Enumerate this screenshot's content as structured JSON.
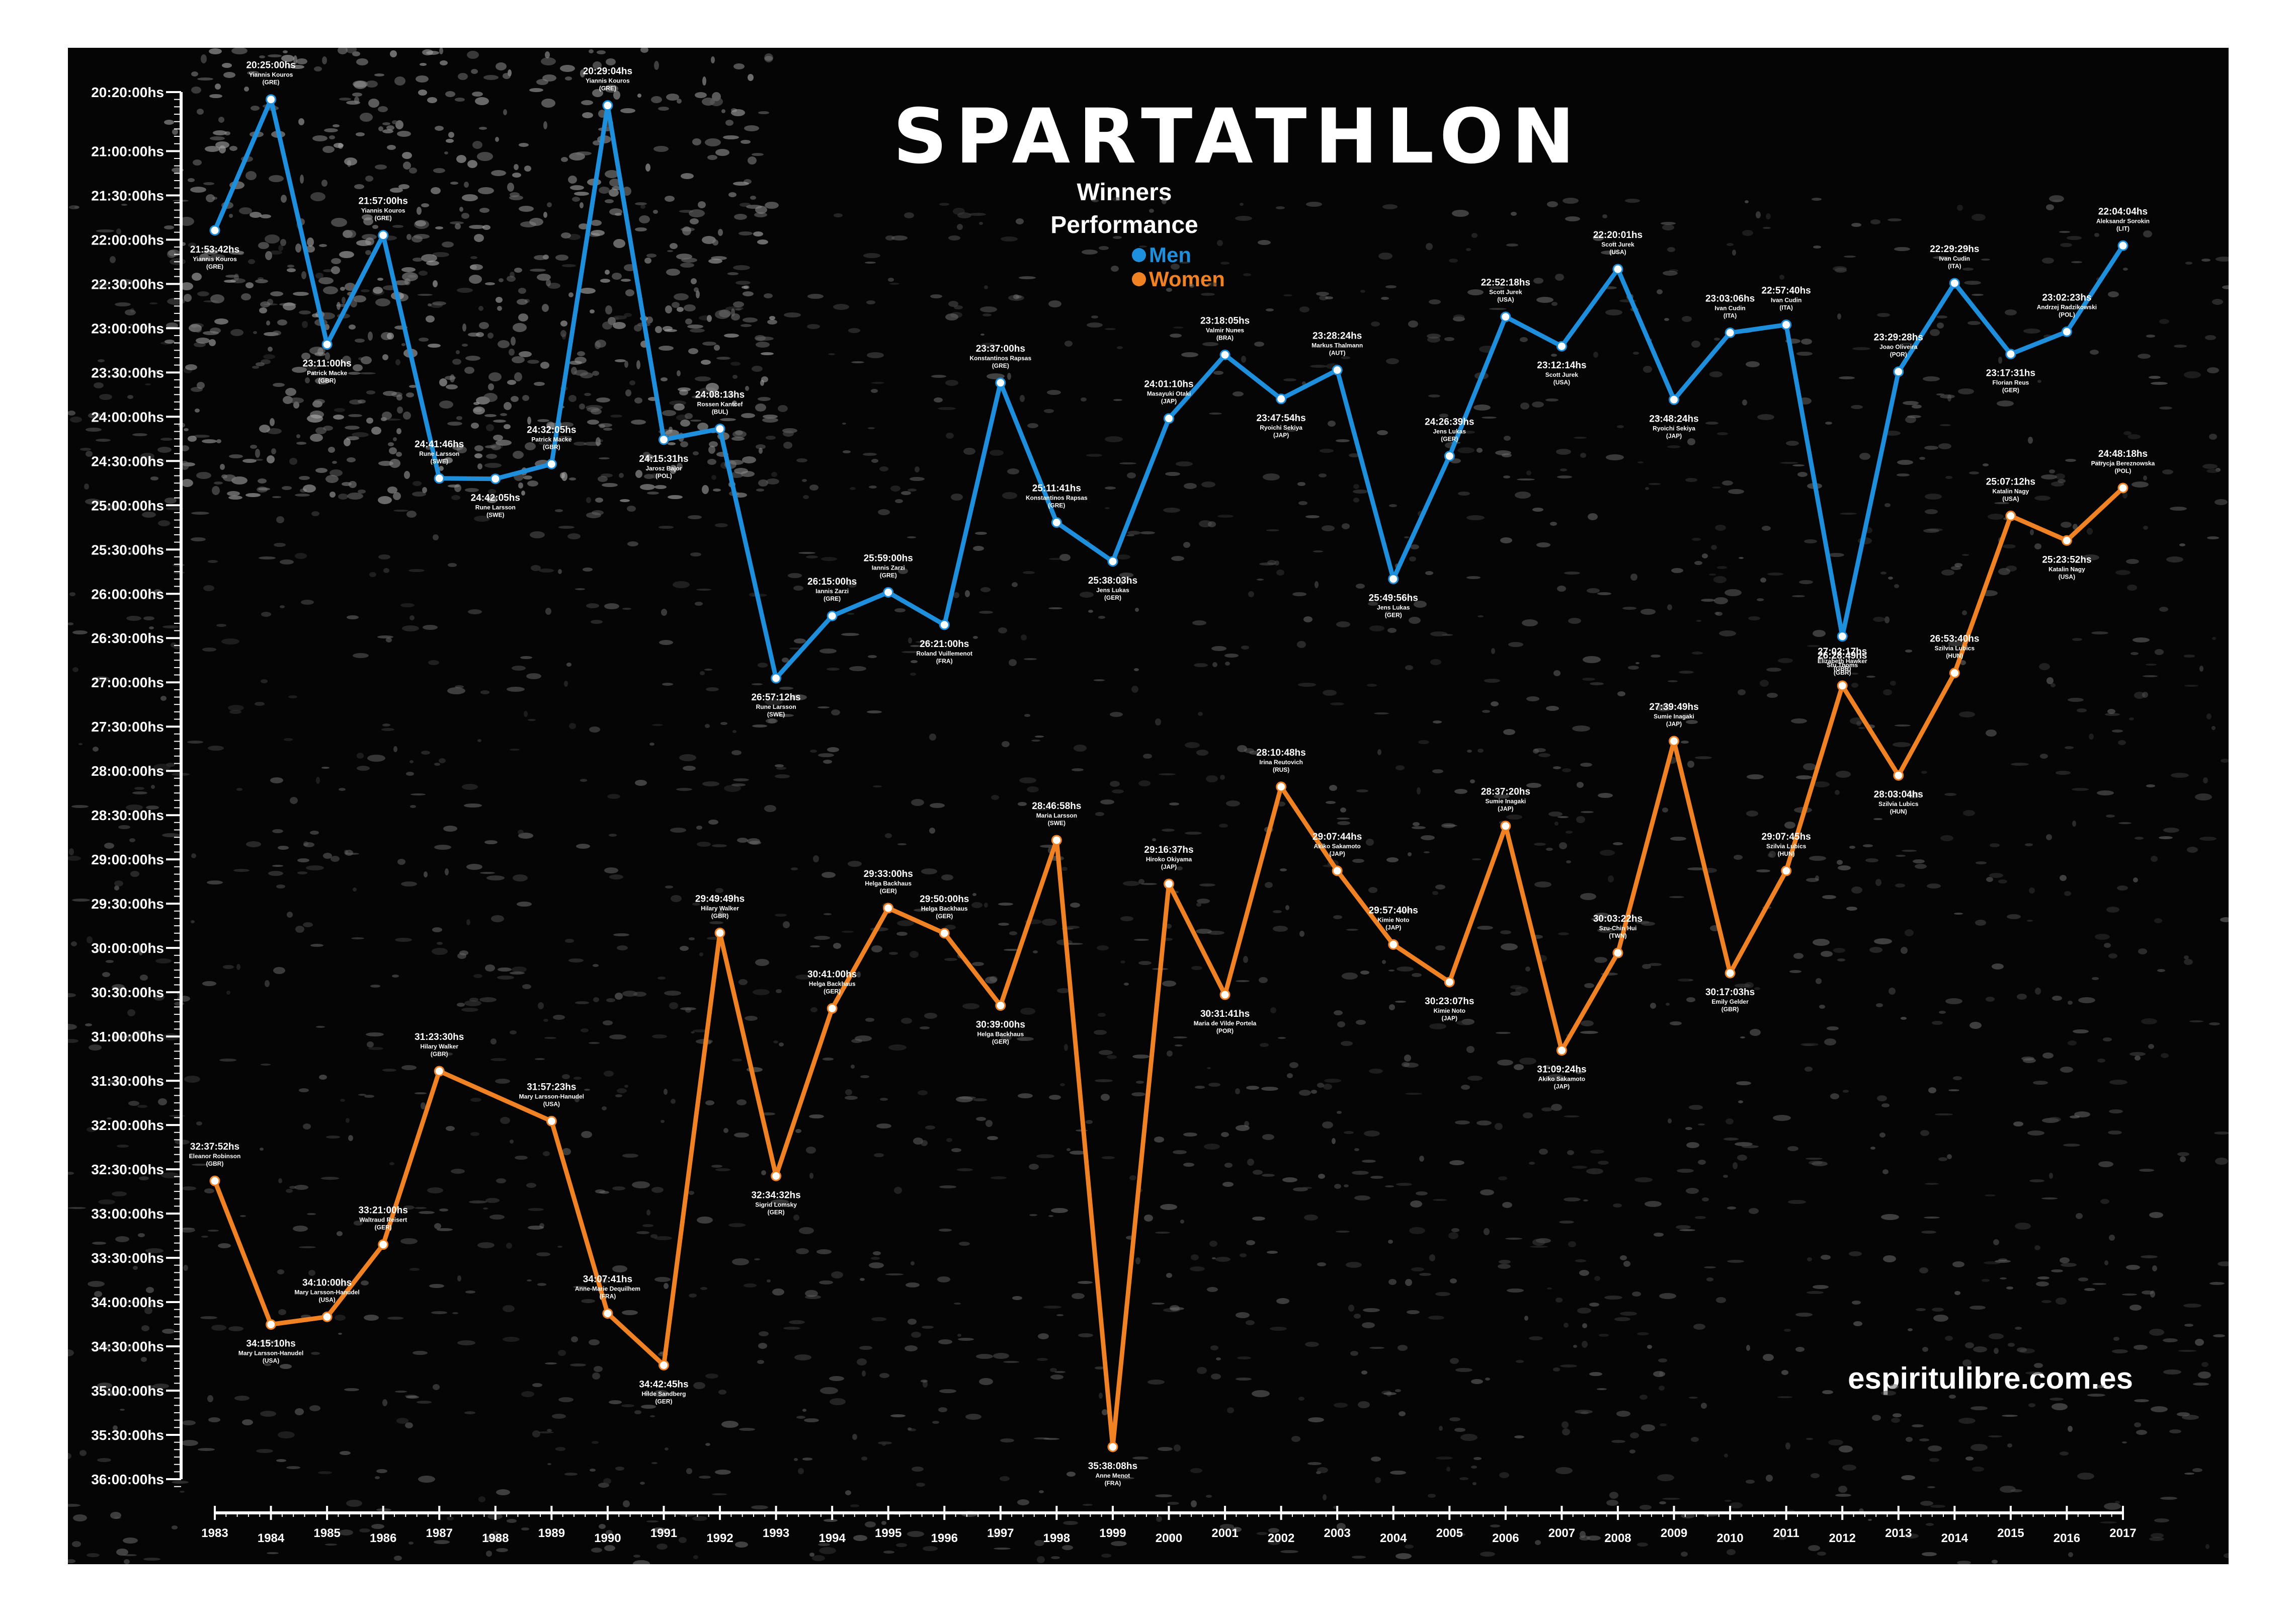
{
  "title": "SPARTATHLON",
  "subtitle_line1": "Winners",
  "subtitle_line2": "Performance",
  "website": "espiritulibre.com.es",
  "colors": {
    "men": "#1e8fdc",
    "women": "#f08224",
    "background": "#050505",
    "text": "#ffffff"
  },
  "chart_data": {
    "type": "line",
    "title": "SPARTATHLON Winners Performance",
    "xlabel": "",
    "ylabel": "",
    "x": [
      1983,
      1984,
      1985,
      1986,
      1987,
      1988,
      1989,
      1990,
      1991,
      1992,
      1993,
      1994,
      1995,
      1996,
      1997,
      1998,
      1999,
      2000,
      2001,
      2002,
      2003,
      2004,
      2005,
      2006,
      2007,
      2008,
      2009,
      2010,
      2011,
      2012,
      2013,
      2014,
      2015,
      2016,
      2017
    ],
    "ylim_hours": [
      20.333,
      36.0
    ],
    "y_inverted": true,
    "y_ticks": [
      "20:20:00hs",
      "21:00:00hs",
      "21:30:00hs",
      "22:00:00hs",
      "22:30:00hs",
      "23:00:00hs",
      "23:30:00hs",
      "24:00:00hs",
      "24:30:00hs",
      "25:00:00hs",
      "25:30:00hs",
      "26:00:00hs",
      "26:30:00hs",
      "27:00:00hs",
      "27:30:00hs",
      "28:00:00hs",
      "28:30:00hs",
      "29:00:00hs",
      "29:30:00hs",
      "30:00:00hs",
      "30:30:00hs",
      "31:00:00hs",
      "31:30:00hs",
      "32:00:00hs",
      "32:30:00hs",
      "33:00:00hs",
      "33:30:00hs",
      "34:00:00hs",
      "34:30:00hs",
      "35:00:00hs",
      "35:30:00hs",
      "36:00:00hs"
    ],
    "legend": [
      "Men",
      "Women"
    ],
    "series": [
      {
        "name": "Men",
        "values": [
          "21:53:42hs",
          "20:25:00hs",
          "23:11:00hs",
          "21:57:00hs",
          "24:41:46hs",
          "24:42:05hs",
          "24:32:05hs",
          "20:29:04hs",
          "24:15:31hs",
          "24:08:13hs",
          "26:57:12hs",
          "26:15:00hs",
          "25:59:00hs",
          "26:21:00hs",
          "23:37:00hs",
          "25:11:41hs",
          "25:38:03hs",
          "24:01:10hs",
          "23:18:05hs",
          "23:47:54hs",
          "23:28:24hs",
          "25:49:56hs",
          "24:26:39hs",
          "22:52:18hs",
          "23:12:14hs",
          "22:20:01hs",
          "23:48:24hs",
          "23:03:06hs",
          "22:57:40hs",
          "26:28:49hs",
          "23:29:28hs",
          "22:29:29hs",
          "23:17:31hs",
          "23:02:23hs",
          "22:04:04hs"
        ],
        "winners": [
          "Yiannis Kouros (GRE)",
          "Yiannis Kouros (GRE)",
          "Patrick Macke (GBR)",
          "Yiannis Kouros (GRE)",
          "Rune Larsson (SWE)",
          "Rune Larsson (SWE)",
          "Patrick Macke (GBR)",
          "Yiannis Kouros (GRE)",
          "Jarosz Bajor (POL)",
          "Rossen Kantcef (BUL)",
          "Rune Larsson (SWE)",
          "Iannis Zarzi (GRE)",
          "Iannis Zarzi (GRE)",
          "Roland Vuillemenot (FRA)",
          "Konstantinos Rapsas (GRE)",
          "Konstantinos Rapsas (GRE)",
          "Jens Lukas (GER)",
          "Masayuki Otaki (JAP)",
          "Valmir Nunes (BRA)",
          "Ryoichi Sekiya (JAP)",
          "Markus Thalmann (AUT)",
          "Jens Lukas (GER)",
          "Jens Lukas (GER)",
          "Scott Jurek (USA)",
          "Scott Jurek (USA)",
          "Scott Jurek (USA)",
          "Ryoichi Sekiya (JAP)",
          "Ivan Cudin (ITA)",
          "Ivan Cudin (ITA)",
          "Stu Thoms (GBR)",
          "Joao Oliveira (POR)",
          "Ivan Cudin (ITA)",
          "Florian Reus (GER)",
          "Andrzej Radzikowski (POL)",
          "Aleksandr Sorokin (LIT)"
        ]
      },
      {
        "name": "Women",
        "values": [
          "32:37:52hs",
          "34:15:10hs",
          "34:10:00hs",
          "33:21:00hs",
          "31:23:30hs",
          "",
          "31:57:23hs",
          "34:07:41hs",
          "34:42:45hs",
          "29:49:49hs",
          "32:34:32hs",
          "30:41:00hs",
          "29:33:00hs",
          "29:50:00hs",
          "30:39:00hs",
          "28:46:58hs",
          "35:38:08hs",
          "29:16:37hs",
          "30:31:41hs",
          "28:10:48hs",
          "29:07:44hs",
          "29:57:40hs",
          "30:23:07hs",
          "28:37:20hs",
          "31:09:24hs",
          "30:03:22hs",
          "27:39:49hs",
          "30:17:03hs",
          "29:07:45hs",
          "27:02:17hs",
          "28:03:04hs",
          "26:53:40hs",
          "25:07:12hs",
          "25:23:52hs",
          "24:48:18hs"
        ],
        "winners": [
          "Eleanor Robinson (GBR)",
          "Mary Larsson-Hanudel (USA)",
          "Mary Larsson-Hanudel (USA)",
          "Waltraud Reisert (GER)",
          "Hilary Walker (GBR)",
          "",
          "Mary Larsson-Hanudel (USA)",
          "Anne-Marie Dequilhem (FRA)",
          "Hilde Sandberg (GER)",
          "Hilary Walker (GBR)",
          "Sigrid Lomsky (GER)",
          "Helga Backhaus (GER)",
          "Helga Backhaus (GER)",
          "Helga Backhaus (GER)",
          "Helga Backhaus (GER)",
          "Maria Larsson (SWE)",
          "Anne Menot (FRA)",
          "Hiroko Okiyama (JAP)",
          "Maria de Vilde Portela (POR)",
          "Irina Reutovich (RUS)",
          "Akiko Sakamoto (JAP)",
          "Kimie Noto (JAP)",
          "Kimie Noto (JAP)",
          "Sumie Inagaki (JAP)",
          "Akiko Sakamoto (JAP)",
          "Szu-Chin Hui (TWN)",
          "Sumie Inagaki (JAP)",
          "Emily Gelder (GBR)",
          "Szilvia Lubics (HUN)",
          "Elizabeth Hawker (GBR)",
          "Szilvia Lubics (HUN)",
          "Szilvia Lubics (HUN)",
          "Katalin Nagy (USA)",
          "Katalin Nagy (USA)",
          "Patrycja Bereznowska (POL)"
        ]
      }
    ]
  }
}
